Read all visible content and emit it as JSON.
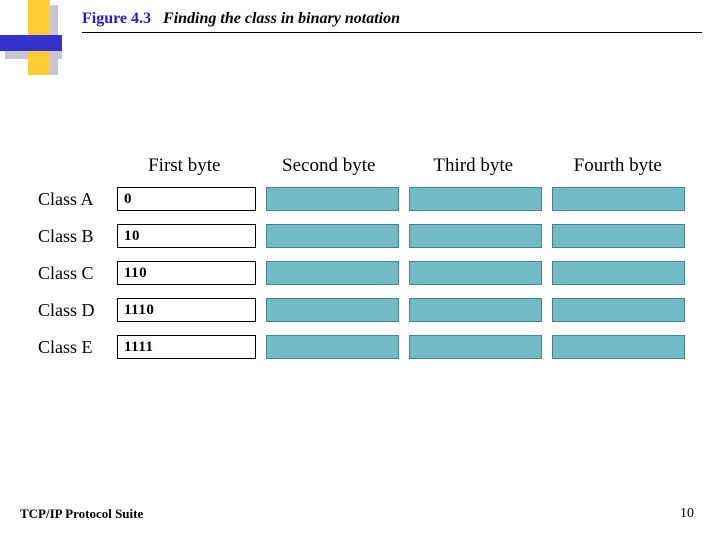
{
  "figure": {
    "label": "Figure 4.3",
    "title": "Finding the class in binary notation"
  },
  "columns": [
    "First byte",
    "Second byte",
    "Third byte",
    "Fourth byte"
  ],
  "rows": [
    {
      "label": "Class A",
      "firstByte": "0"
    },
    {
      "label": "Class B",
      "firstByte": "10"
    },
    {
      "label": "Class C",
      "firstByte": "110"
    },
    {
      "label": "Class D",
      "firstByte": "1110"
    },
    {
      "label": "Class E",
      "firstByte": "1111"
    }
  ],
  "colors": {
    "filledCell": "#72bcc8",
    "accentYellow": "#ffcc33",
    "accentBlue": "#3333cc",
    "titleBlue": "#2020cc"
  },
  "footer": {
    "left": "TCP/IP Protocol Suite",
    "pageNum": "10"
  }
}
